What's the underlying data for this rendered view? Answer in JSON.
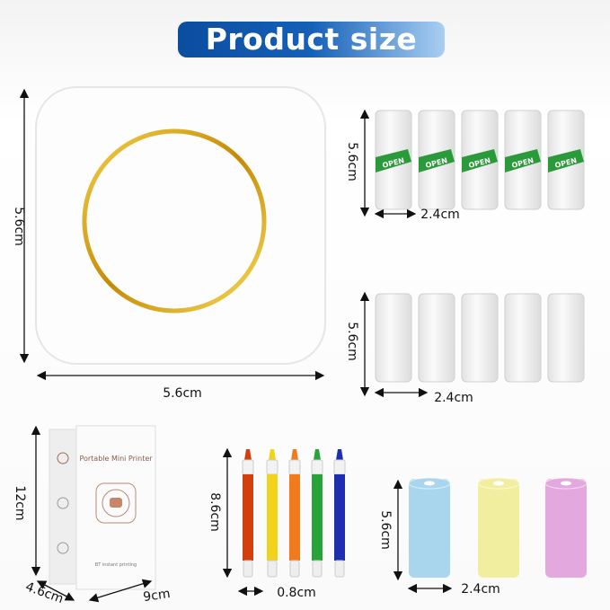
{
  "title": "Product size",
  "printer": {
    "height_label": "5.6cm",
    "width_label": "5.6cm",
    "ring_color": "#d4a412"
  },
  "sticker_rolls": {
    "count": 5,
    "tag_text": "OPEN",
    "height_label": "5.6cm",
    "width_label": "2.4cm",
    "tag_color": "#2a9a3a"
  },
  "plain_rolls": {
    "count": 5,
    "height_label": "5.6cm",
    "width_label": "2.4cm"
  },
  "box": {
    "title": "Portable Mini Printer",
    "caption": "BT instant printing",
    "height_label": "12cm",
    "depth_label": "4.6cm",
    "width_label": "9cm"
  },
  "pens": {
    "colors": [
      "#d2400f",
      "#f2d21a",
      "#f07a1c",
      "#27a33a",
      "#1d2fb0"
    ],
    "height_label": "8.6cm",
    "width_label": "0.8cm"
  },
  "color_rolls": {
    "colors": [
      "#a9d6ec",
      "#f2eea0",
      "#e3a9de"
    ],
    "height_label": "5.6cm",
    "width_label": "2.4cm"
  }
}
